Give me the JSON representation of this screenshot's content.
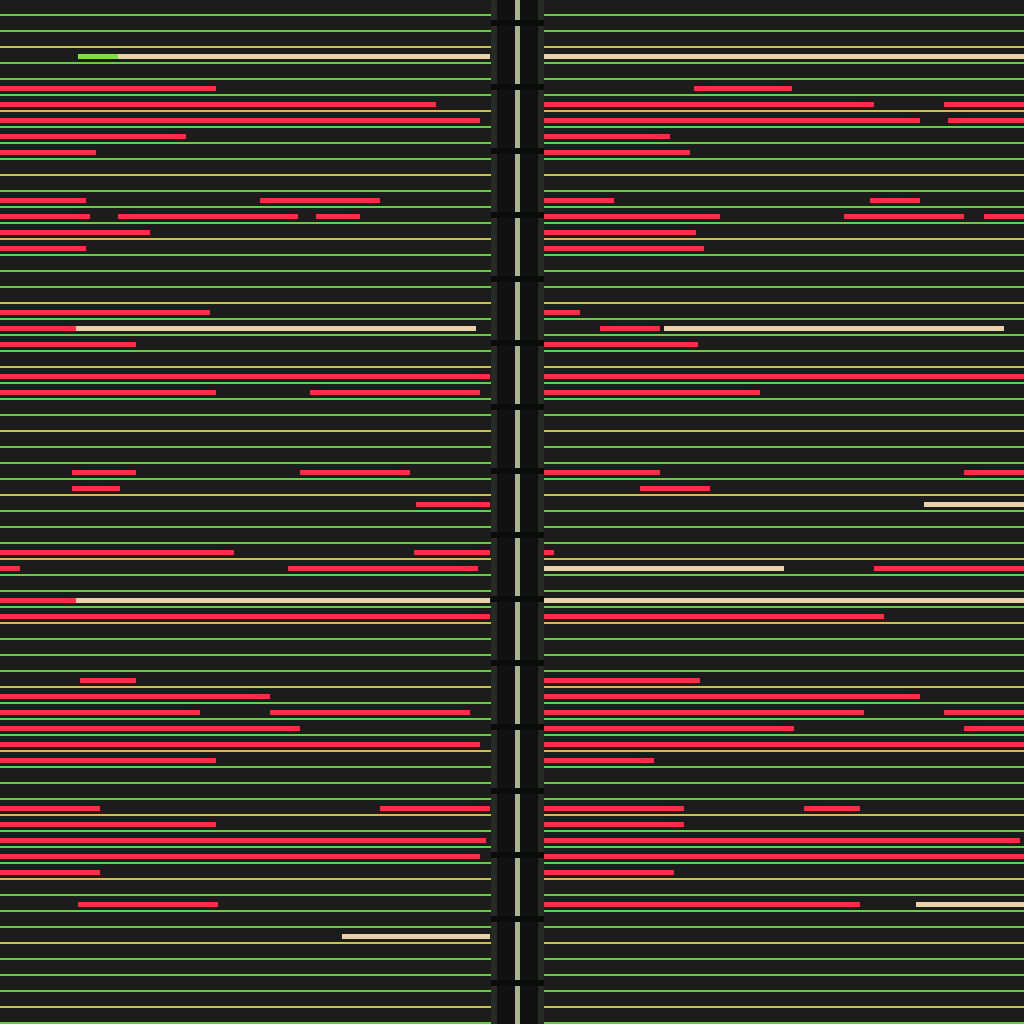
{
  "colors": {
    "background": "#171717",
    "row_fill": "#1b1c1b",
    "gridline_green": "#63d239",
    "gridline_yellow": "#c9c43a",
    "highlight_red": "#ff2d45",
    "highlight_beige": "#e8d2a8",
    "highlight_lime": "#7fe23c",
    "divider": "#101110",
    "divider_core": "#a9b58f"
  },
  "rows": [
    {
      "gl": "g",
      "l": [],
      "r": []
    },
    {
      "gl": "g",
      "l": [],
      "r": []
    },
    {
      "gl": "y",
      "l": [],
      "r": []
    },
    {
      "gl": "g",
      "l": [
        [
          78,
          40,
          "lime"
        ],
        [
          118,
          372,
          "beige"
        ]
      ],
      "r": [
        [
          0,
          480,
          "beige"
        ]
      ]
    },
    {
      "gl": "g",
      "l": [],
      "r": []
    },
    {
      "gl": "g",
      "l": [
        [
          0,
          216,
          "red"
        ]
      ],
      "r": [
        [
          150,
          98,
          "red"
        ]
      ]
    },
    {
      "gl": "y",
      "l": [
        [
          0,
          436,
          "red"
        ]
      ],
      "r": [
        [
          0,
          330,
          "red"
        ],
        [
          400,
          80,
          "red"
        ]
      ]
    },
    {
      "gl": "g",
      "l": [
        [
          0,
          480,
          "red"
        ]
      ],
      "r": [
        [
          0,
          376,
          "red"
        ],
        [
          404,
          76,
          "red"
        ]
      ]
    },
    {
      "gl": "g",
      "l": [
        [
          0,
          186,
          "red"
        ]
      ],
      "r": [
        [
          0,
          126,
          "red"
        ]
      ]
    },
    {
      "gl": "g",
      "l": [
        [
          0,
          96,
          "red"
        ]
      ],
      "r": [
        [
          0,
          146,
          "red"
        ]
      ]
    },
    {
      "gl": "y",
      "l": [],
      "r": []
    },
    {
      "gl": "g",
      "l": [],
      "r": []
    },
    {
      "gl": "g",
      "l": [
        [
          0,
          86,
          "red"
        ],
        [
          260,
          120,
          "red"
        ]
      ],
      "r": [
        [
          0,
          70,
          "red"
        ],
        [
          326,
          50,
          "red"
        ]
      ]
    },
    {
      "gl": "g",
      "l": [
        [
          0,
          90,
          "red"
        ],
        [
          118,
          180,
          "red"
        ],
        [
          316,
          44,
          "red"
        ]
      ],
      "r": [
        [
          0,
          176,
          "red"
        ],
        [
          300,
          120,
          "red"
        ],
        [
          440,
          40,
          "red"
        ]
      ]
    },
    {
      "gl": "y",
      "l": [
        [
          0,
          150,
          "red"
        ]
      ],
      "r": [
        [
          0,
          152,
          "red"
        ]
      ]
    },
    {
      "gl": "g",
      "l": [
        [
          0,
          86,
          "red"
        ]
      ],
      "r": [
        [
          0,
          160,
          "red"
        ]
      ]
    },
    {
      "gl": "g",
      "l": [],
      "r": []
    },
    {
      "gl": "g",
      "l": [],
      "r": []
    },
    {
      "gl": "y",
      "l": [],
      "r": []
    },
    {
      "gl": "g",
      "l": [
        [
          0,
          210,
          "red"
        ]
      ],
      "r": [
        [
          0,
          36,
          "red"
        ]
      ]
    },
    {
      "gl": "g",
      "l": [
        [
          0,
          76,
          "red"
        ],
        [
          76,
          400,
          "beige"
        ]
      ],
      "r": [
        [
          56,
          60,
          "red"
        ],
        [
          120,
          340,
          "beige"
        ]
      ]
    },
    {
      "gl": "g",
      "l": [
        [
          0,
          136,
          "red"
        ]
      ],
      "r": [
        [
          0,
          154,
          "red"
        ]
      ]
    },
    {
      "gl": "y",
      "l": [],
      "r": []
    },
    {
      "gl": "g",
      "l": [
        [
          0,
          490,
          "red"
        ]
      ],
      "r": [
        [
          0,
          480,
          "red"
        ]
      ]
    },
    {
      "gl": "g",
      "l": [
        [
          0,
          216,
          "red"
        ],
        [
          310,
          170,
          "red"
        ]
      ],
      "r": [
        [
          0,
          216,
          "red"
        ]
      ]
    },
    {
      "gl": "g",
      "l": [],
      "r": []
    },
    {
      "gl": "y",
      "l": [],
      "r": []
    },
    {
      "gl": "g",
      "l": [],
      "r": []
    },
    {
      "gl": "g",
      "l": [],
      "r": []
    },
    {
      "gl": "g",
      "l": [
        [
          72,
          64,
          "red"
        ],
        [
          300,
          110,
          "red"
        ]
      ],
      "r": [
        [
          0,
          116,
          "red"
        ],
        [
          420,
          60,
          "red"
        ]
      ]
    },
    {
      "gl": "y",
      "l": [
        [
          72,
          48,
          "red"
        ]
      ],
      "r": [
        [
          96,
          70,
          "red"
        ]
      ]
    },
    {
      "gl": "g",
      "l": [
        [
          416,
          74,
          "red"
        ]
      ],
      "r": [
        [
          380,
          100,
          "beige"
        ]
      ]
    },
    {
      "gl": "g",
      "l": [],
      "r": []
    },
    {
      "gl": "g",
      "l": [],
      "r": []
    },
    {
      "gl": "y",
      "l": [
        [
          0,
          234,
          "red"
        ],
        [
          414,
          76,
          "red"
        ]
      ],
      "r": [
        [
          0,
          10,
          "red"
        ]
      ]
    },
    {
      "gl": "g",
      "l": [
        [
          0,
          20,
          "red"
        ],
        [
          288,
          190,
          "red"
        ]
      ],
      "r": [
        [
          0,
          240,
          "beige"
        ],
        [
          330,
          150,
          "red"
        ]
      ]
    },
    {
      "gl": "g",
      "l": [],
      "r": []
    },
    {
      "gl": "g",
      "l": [
        [
          0,
          76,
          "red"
        ],
        [
          76,
          414,
          "beige"
        ]
      ],
      "r": [
        [
          0,
          480,
          "beige"
        ]
      ]
    },
    {
      "gl": "y",
      "l": [
        [
          0,
          490,
          "red"
        ]
      ],
      "r": [
        [
          0,
          340,
          "red"
        ]
      ]
    },
    {
      "gl": "g",
      "l": [],
      "r": []
    },
    {
      "gl": "g",
      "l": [],
      "r": []
    },
    {
      "gl": "g",
      "l": [],
      "r": []
    },
    {
      "gl": "y",
      "l": [
        [
          80,
          56,
          "red"
        ]
      ],
      "r": [
        [
          0,
          156,
          "red"
        ]
      ]
    },
    {
      "gl": "g",
      "l": [
        [
          0,
          270,
          "red"
        ]
      ],
      "r": [
        [
          0,
          376,
          "red"
        ]
      ]
    },
    {
      "gl": "g",
      "l": [
        [
          0,
          200,
          "red"
        ],
        [
          270,
          200,
          "red"
        ]
      ],
      "r": [
        [
          0,
          320,
          "red"
        ],
        [
          400,
          80,
          "red"
        ]
      ]
    },
    {
      "gl": "g",
      "l": [
        [
          0,
          300,
          "red"
        ]
      ],
      "r": [
        [
          0,
          250,
          "red"
        ],
        [
          420,
          60,
          "red"
        ]
      ]
    },
    {
      "gl": "y",
      "l": [
        [
          0,
          480,
          "red"
        ]
      ],
      "r": [
        [
          0,
          480,
          "red"
        ]
      ]
    },
    {
      "gl": "g",
      "l": [
        [
          0,
          216,
          "red"
        ]
      ],
      "r": [
        [
          0,
          110,
          "red"
        ]
      ]
    },
    {
      "gl": "g",
      "l": [],
      "r": []
    },
    {
      "gl": "g",
      "l": [],
      "r": []
    },
    {
      "gl": "y",
      "l": [
        [
          0,
          100,
          "red"
        ],
        [
          380,
          110,
          "red"
        ]
      ],
      "r": [
        [
          0,
          140,
          "red"
        ],
        [
          260,
          56,
          "red"
        ]
      ]
    },
    {
      "gl": "g",
      "l": [
        [
          0,
          216,
          "red"
        ]
      ],
      "r": [
        [
          0,
          140,
          "red"
        ]
      ]
    },
    {
      "gl": "g",
      "l": [
        [
          0,
          486,
          "red"
        ]
      ],
      "r": [
        [
          0,
          476,
          "red"
        ]
      ]
    },
    {
      "gl": "g",
      "l": [
        [
          0,
          480,
          "red"
        ]
      ],
      "r": [
        [
          0,
          480,
          "red"
        ]
      ]
    },
    {
      "gl": "y",
      "l": [
        [
          0,
          100,
          "red"
        ]
      ],
      "r": [
        [
          0,
          130,
          "red"
        ]
      ]
    },
    {
      "gl": "g",
      "l": [],
      "r": []
    },
    {
      "gl": "g",
      "l": [
        [
          78,
          140,
          "red"
        ]
      ],
      "r": [
        [
          0,
          316,
          "red"
        ],
        [
          372,
          108,
          "beige"
        ]
      ]
    },
    {
      "gl": "g",
      "l": [],
      "r": []
    },
    {
      "gl": "y",
      "l": [
        [
          342,
          148,
          "beige"
        ]
      ],
      "r": []
    },
    {
      "gl": "g",
      "l": [],
      "r": []
    },
    {
      "gl": "g",
      "l": [],
      "r": []
    },
    {
      "gl": "g",
      "l": [],
      "r": []
    },
    {
      "gl": "y",
      "l": [],
      "r": []
    },
    {
      "gl": "g",
      "l": [],
      "r": []
    }
  ]
}
